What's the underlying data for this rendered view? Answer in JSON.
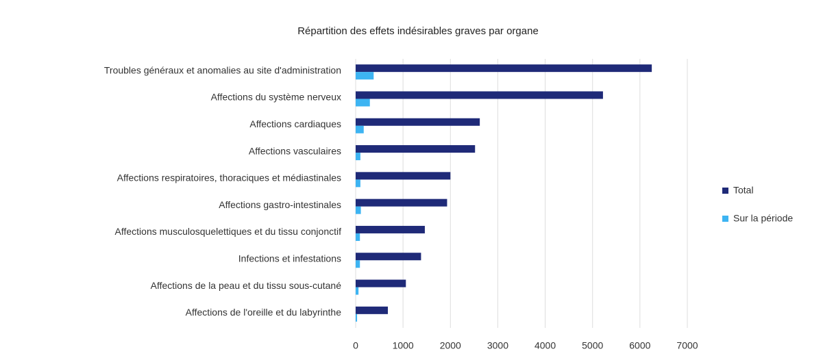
{
  "chart_data": {
    "type": "bar",
    "orientation": "horizontal",
    "title": "Répartition des effets indésirables graves par organe",
    "categories": [
      "Troubles généraux et anomalies au site d'administration",
      "Affections du système nerveux",
      "Affections cardiaques",
      "Affections vasculaires",
      "Affections respiratoires, thoraciques et médiastinales",
      "Affections gastro-intestinales",
      "Affections musculosquelettiques et du tissu conjonctif",
      "Infections et infestations",
      "Affections de la peau et du tissu sous-cutané",
      "Affections de l'oreille et du labyrinthe"
    ],
    "series": [
      {
        "name": "Total",
        "color": "#1f2a78",
        "values": [
          6250,
          5220,
          2620,
          2520,
          2000,
          1930,
          1460,
          1380,
          1060,
          680
        ]
      },
      {
        "name": "Sur la période",
        "color": "#3db4f2",
        "values": [
          380,
          300,
          170,
          100,
          100,
          110,
          90,
          90,
          60,
          30
        ]
      }
    ],
    "xlim": [
      0,
      7000
    ],
    "xticks": [
      0,
      1000,
      2000,
      3000,
      4000,
      5000,
      6000,
      7000
    ],
    "grid": true,
    "legend": "right"
  }
}
